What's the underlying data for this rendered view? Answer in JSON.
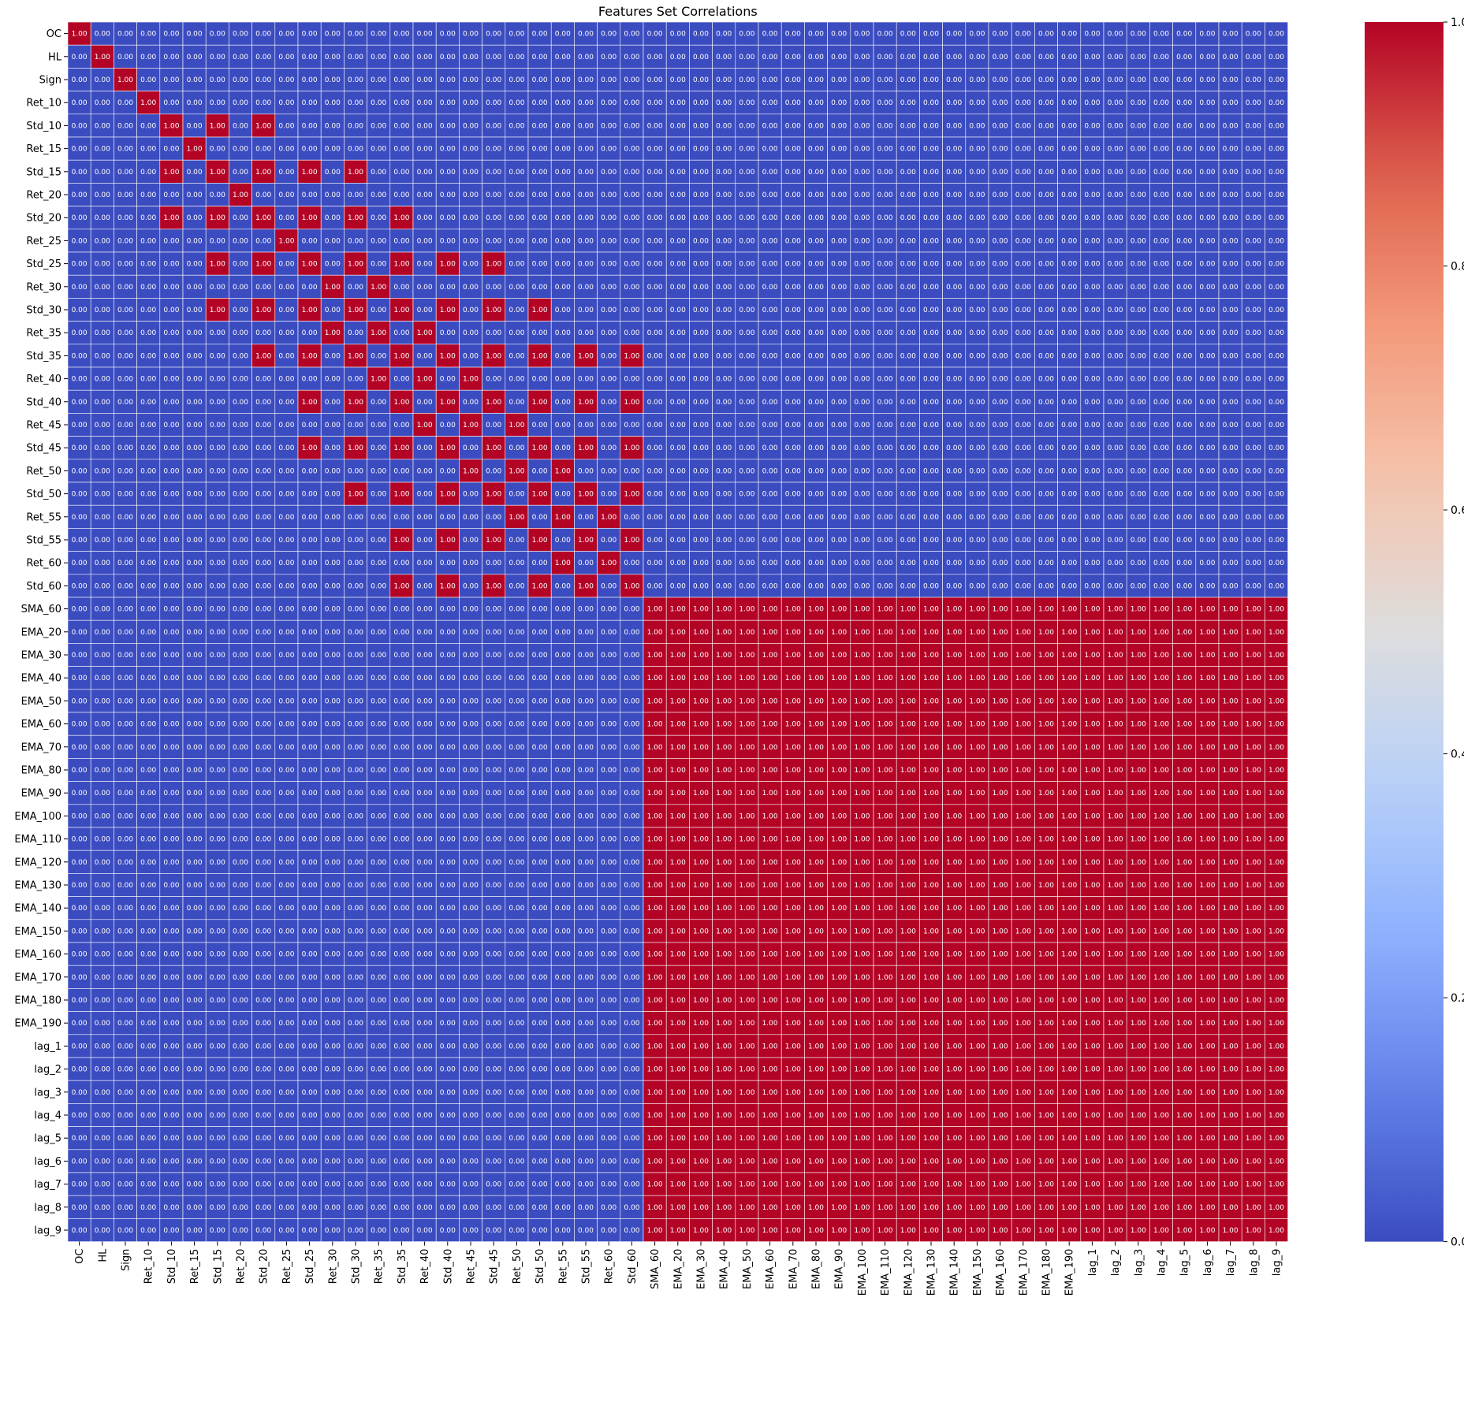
{
  "chart_data": {
    "type": "heatmap",
    "title": "Features Set Correlations",
    "xlabel": "",
    "ylabel": "",
    "labels": [
      "OC",
      "HL",
      "Sign",
      "Ret_10",
      "Std_10",
      "Ret_15",
      "Std_15",
      "Ret_20",
      "Std_20",
      "Ret_25",
      "Std_25",
      "Ret_30",
      "Std_30",
      "Ret_35",
      "Std_35",
      "Ret_40",
      "Std_40",
      "Ret_45",
      "Std_45",
      "Ret_50",
      "Std_50",
      "Ret_55",
      "Std_55",
      "Ret_60",
      "Std_60",
      "SMA_60",
      "EMA_20",
      "EMA_30",
      "EMA_40",
      "EMA_50",
      "EMA_60",
      "EMA_70",
      "EMA_80",
      "EMA_90",
      "EMA_100",
      "EMA_110",
      "EMA_120",
      "EMA_130",
      "EMA_140",
      "EMA_150",
      "EMA_160",
      "EMA_170",
      "EMA_180",
      "EMA_190",
      "lag_1",
      "lag_2",
      "lag_3",
      "lag_4",
      "lag_5",
      "lag_6",
      "lag_7",
      "lag_8",
      "lag_9"
    ],
    "ones": [
      [
        0,
        0
      ],
      [
        1,
        1
      ],
      [
        2,
        2
      ],
      [
        3,
        3
      ],
      [
        4,
        4
      ],
      [
        4,
        6
      ],
      [
        4,
        8
      ],
      [
        5,
        5
      ],
      [
        6,
        4
      ],
      [
        6,
        6
      ],
      [
        6,
        8
      ],
      [
        6,
        10
      ],
      [
        6,
        12
      ],
      [
        7,
        7
      ],
      [
        8,
        4
      ],
      [
        8,
        6
      ],
      [
        8,
        8
      ],
      [
        8,
        10
      ],
      [
        8,
        12
      ],
      [
        8,
        14
      ],
      [
        9,
        9
      ],
      [
        10,
        6
      ],
      [
        10,
        8
      ],
      [
        10,
        10
      ],
      [
        10,
        12
      ],
      [
        10,
        14
      ],
      [
        10,
        16
      ],
      [
        10,
        18
      ],
      [
        11,
        11
      ],
      [
        11,
        13
      ],
      [
        12,
        6
      ],
      [
        12,
        8
      ],
      [
        12,
        10
      ],
      [
        12,
        12
      ],
      [
        12,
        14
      ],
      [
        12,
        16
      ],
      [
        12,
        18
      ],
      [
        12,
        20
      ],
      [
        13,
        11
      ],
      [
        13,
        13
      ],
      [
        13,
        15
      ],
      [
        14,
        8
      ],
      [
        14,
        10
      ],
      [
        14,
        12
      ],
      [
        14,
        14
      ],
      [
        14,
        16
      ],
      [
        14,
        18
      ],
      [
        14,
        20
      ],
      [
        14,
        22
      ],
      [
        14,
        24
      ],
      [
        15,
        13
      ],
      [
        15,
        15
      ],
      [
        15,
        17
      ],
      [
        16,
        10
      ],
      [
        16,
        12
      ],
      [
        16,
        14
      ],
      [
        16,
        16
      ],
      [
        16,
        18
      ],
      [
        16,
        20
      ],
      [
        16,
        22
      ],
      [
        16,
        24
      ],
      [
        17,
        15
      ],
      [
        17,
        17
      ],
      [
        17,
        19
      ],
      [
        18,
        10
      ],
      [
        18,
        12
      ],
      [
        18,
        14
      ],
      [
        18,
        16
      ],
      [
        18,
        18
      ],
      [
        18,
        20
      ],
      [
        18,
        22
      ],
      [
        18,
        24
      ],
      [
        19,
        17
      ],
      [
        19,
        19
      ],
      [
        19,
        21
      ],
      [
        20,
        12
      ],
      [
        20,
        14
      ],
      [
        20,
        16
      ],
      [
        20,
        18
      ],
      [
        20,
        20
      ],
      [
        20,
        22
      ],
      [
        20,
        24
      ],
      [
        21,
        19
      ],
      [
        21,
        21
      ],
      [
        21,
        23
      ],
      [
        22,
        14
      ],
      [
        22,
        16
      ],
      [
        22,
        18
      ],
      [
        22,
        20
      ],
      [
        22,
        22
      ],
      [
        22,
        24
      ],
      [
        23,
        21
      ],
      [
        23,
        23
      ],
      [
        24,
        14
      ],
      [
        24,
        16
      ],
      [
        24,
        18
      ],
      [
        24,
        20
      ],
      [
        24,
        22
      ],
      [
        24,
        24
      ]
    ],
    "ones_block_start_index": 25,
    "default_value": 0.0,
    "value_format": "0.00",
    "colormap": "coolwarm",
    "vmin": 0.0,
    "vmax": 1.0,
    "colorbar_ticks": [
      0.0,
      0.2,
      0.4,
      0.6,
      0.8,
      1.0
    ],
    "colorbar_tick_labels": [
      "0.0",
      "0.2",
      "0.4",
      "0.6",
      "0.8",
      "1.0"
    ],
    "grid": true
  },
  "colors": {
    "low": "#3b4cc0",
    "high": "#b40426",
    "cell_border": "#ffffff"
  }
}
